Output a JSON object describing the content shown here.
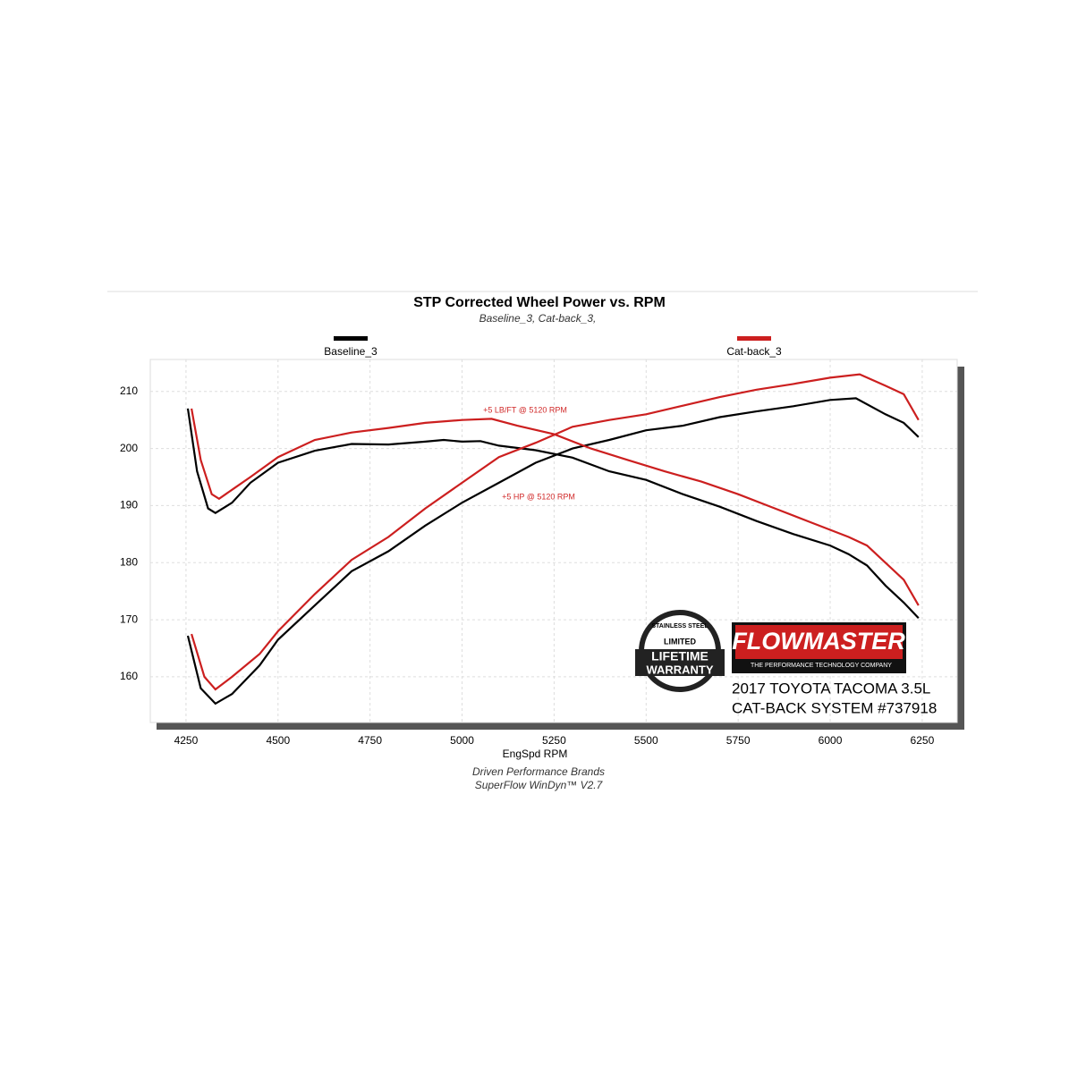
{
  "chart_data": {
    "type": "line",
    "title": "STP Corrected Wheel Power vs. RPM",
    "subtitle": "Baseline_3, Cat-back_3,",
    "x_label": "EngSpd  RPM",
    "footer": [
      "Driven Performance Brands",
      "SuperFlow WinDyn™  V2.7"
    ],
    "xlim": [
      4153,
      6345
    ],
    "ylim": [
      152,
      215.6
    ],
    "xticks": [
      4250,
      4500,
      4750,
      5000,
      5250,
      5500,
      5750,
      6000,
      6250
    ],
    "yticks": [
      160,
      170,
      180,
      190,
      200,
      210
    ],
    "grid": true,
    "annotations": [
      "+5 LB/FT @ 5120 RPM",
      "+5 HP @ 5120 RPM"
    ],
    "annotation_color": "#d12b2b",
    "series": [
      {
        "name": "Baseline_3",
        "color": "#000000",
        "curves": [
          {
            "x": [
              4255,
              4280,
              4310,
              4330,
              4375,
              4425,
              4500,
              4600,
              4700,
              4800,
              4900,
              4950,
              5000,
              5050,
              5100,
              5200,
              5300,
              5400,
              5500,
              5600,
              5700,
              5800,
              5900,
              6000,
              6050,
              6100,
              6150,
              6200,
              6240
            ],
            "values": [
              207,
              196,
              189.5,
              188.7,
              190.5,
              194,
              197.5,
              199.6,
              200.8,
              200.7,
              201.2,
              201.5,
              201.2,
              201.3,
              200.5,
              199.7,
              198.4,
              196,
              194.5,
              192,
              189.8,
              187.3,
              185,
              183,
              181.5,
              179.5,
              176,
              173,
              170.3
            ]
          },
          {
            "x": [
              4255,
              4290,
              4330,
              4375,
              4450,
              4500,
              4600,
              4700,
              4800,
              4900,
              5000,
              5100,
              5200,
              5300,
              5400,
              5500,
              5600,
              5700,
              5800,
              5900,
              6000,
              6070,
              6150,
              6200,
              6240
            ],
            "values": [
              167.2,
              158,
              155.3,
              157,
              162,
              166.5,
              172.5,
              178.5,
              182,
              186.5,
              190.5,
              194,
              197.5,
              200,
              201.5,
              203.2,
              204,
              205.5,
              206.5,
              207.4,
              208.5,
              208.8,
              206,
              204.5,
              202
            ]
          }
        ]
      },
      {
        "name": "Cat-back_3",
        "color": "#cc1f1f",
        "curves": [
          {
            "x": [
              4265,
              4290,
              4320,
              4340,
              4380,
              4425,
              4500,
              4600,
              4700,
              4800,
              4900,
              5000,
              5080,
              5150,
              5250,
              5350,
              5450,
              5550,
              5650,
              5750,
              5850,
              5950,
              6050,
              6100,
              6150,
              6200,
              6240
            ],
            "values": [
              207,
              198,
              192,
              191.2,
              193,
              195,
              198.5,
              201.5,
              202.8,
              203.6,
              204.5,
              205,
              205.2,
              204,
              202.5,
              200,
              198,
              196,
              194.2,
              192,
              189.5,
              187,
              184.5,
              183,
              180,
              177,
              172.5
            ]
          },
          {
            "x": [
              4265,
              4300,
              4330,
              4375,
              4450,
              4500,
              4600,
              4700,
              4800,
              4900,
              5000,
              5100,
              5200,
              5300,
              5400,
              5500,
              5600,
              5700,
              5800,
              5900,
              6000,
              6080,
              6150,
              6200,
              6240
            ],
            "values": [
              167.5,
              160,
              157.8,
              160,
              164,
              168,
              174.5,
              180.5,
              184.5,
              189.5,
              194,
              198.5,
              201,
              203.8,
              205,
              206,
              207.5,
              209,
              210.3,
              211.3,
              212.4,
              213,
              211,
              209.5,
              205
            ]
          }
        ]
      }
    ]
  },
  "branding": {
    "logo": "FLOWMASTER",
    "tagline": "THE PERFORMANCE TECHNOLOGY COMPANY",
    "badge": [
      "STAINLESS STEEL",
      "LIMITED",
      "LIFETIME",
      "WARRANTY"
    ],
    "caption": [
      "2017 TOYOTA TACOMA 3.5L",
      "CAT-BACK SYSTEM #737918"
    ]
  }
}
